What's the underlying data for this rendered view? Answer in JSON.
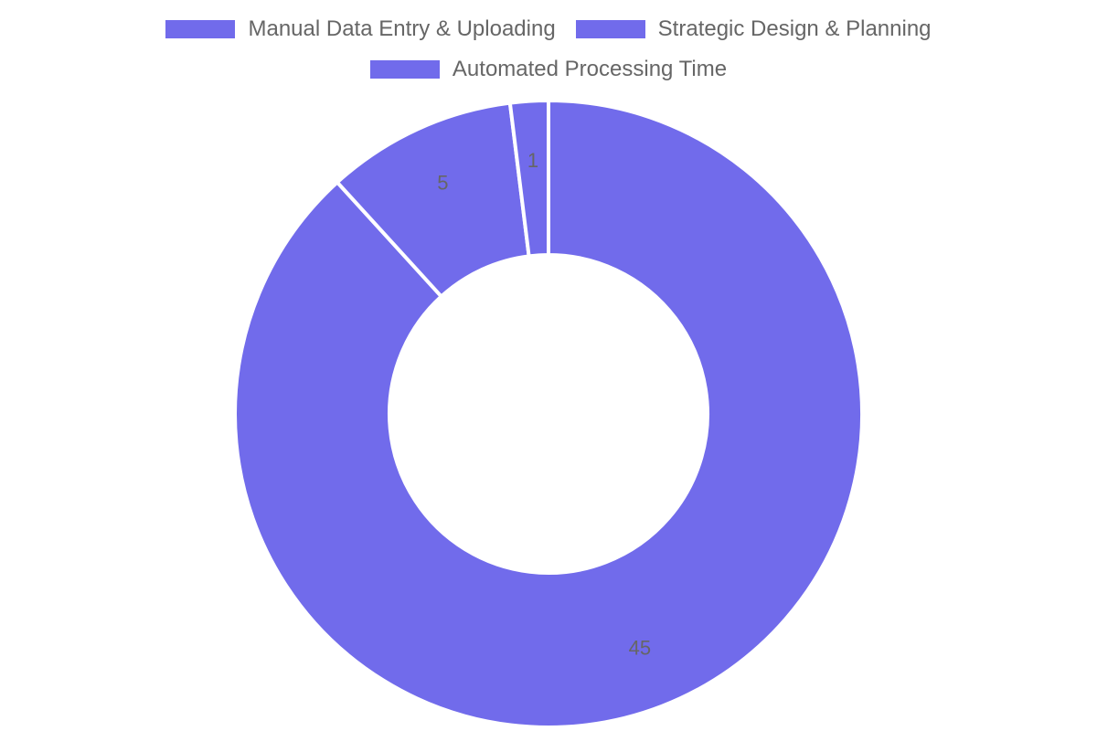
{
  "chart_data": {
    "type": "pie",
    "variant": "doughnut",
    "title": "",
    "legend_position": "top",
    "categories": [
      "Manual Data Entry & Uploading",
      "Strategic Design & Planning",
      "Automated Processing Time"
    ],
    "values": [
      45,
      5,
      1
    ],
    "colors": [
      "#716beb",
      "#716beb",
      "#716beb"
    ],
    "border_color": "#ffffff",
    "label_color": "#666666",
    "data_labels": [
      "45",
      "5",
      "1"
    ]
  }
}
